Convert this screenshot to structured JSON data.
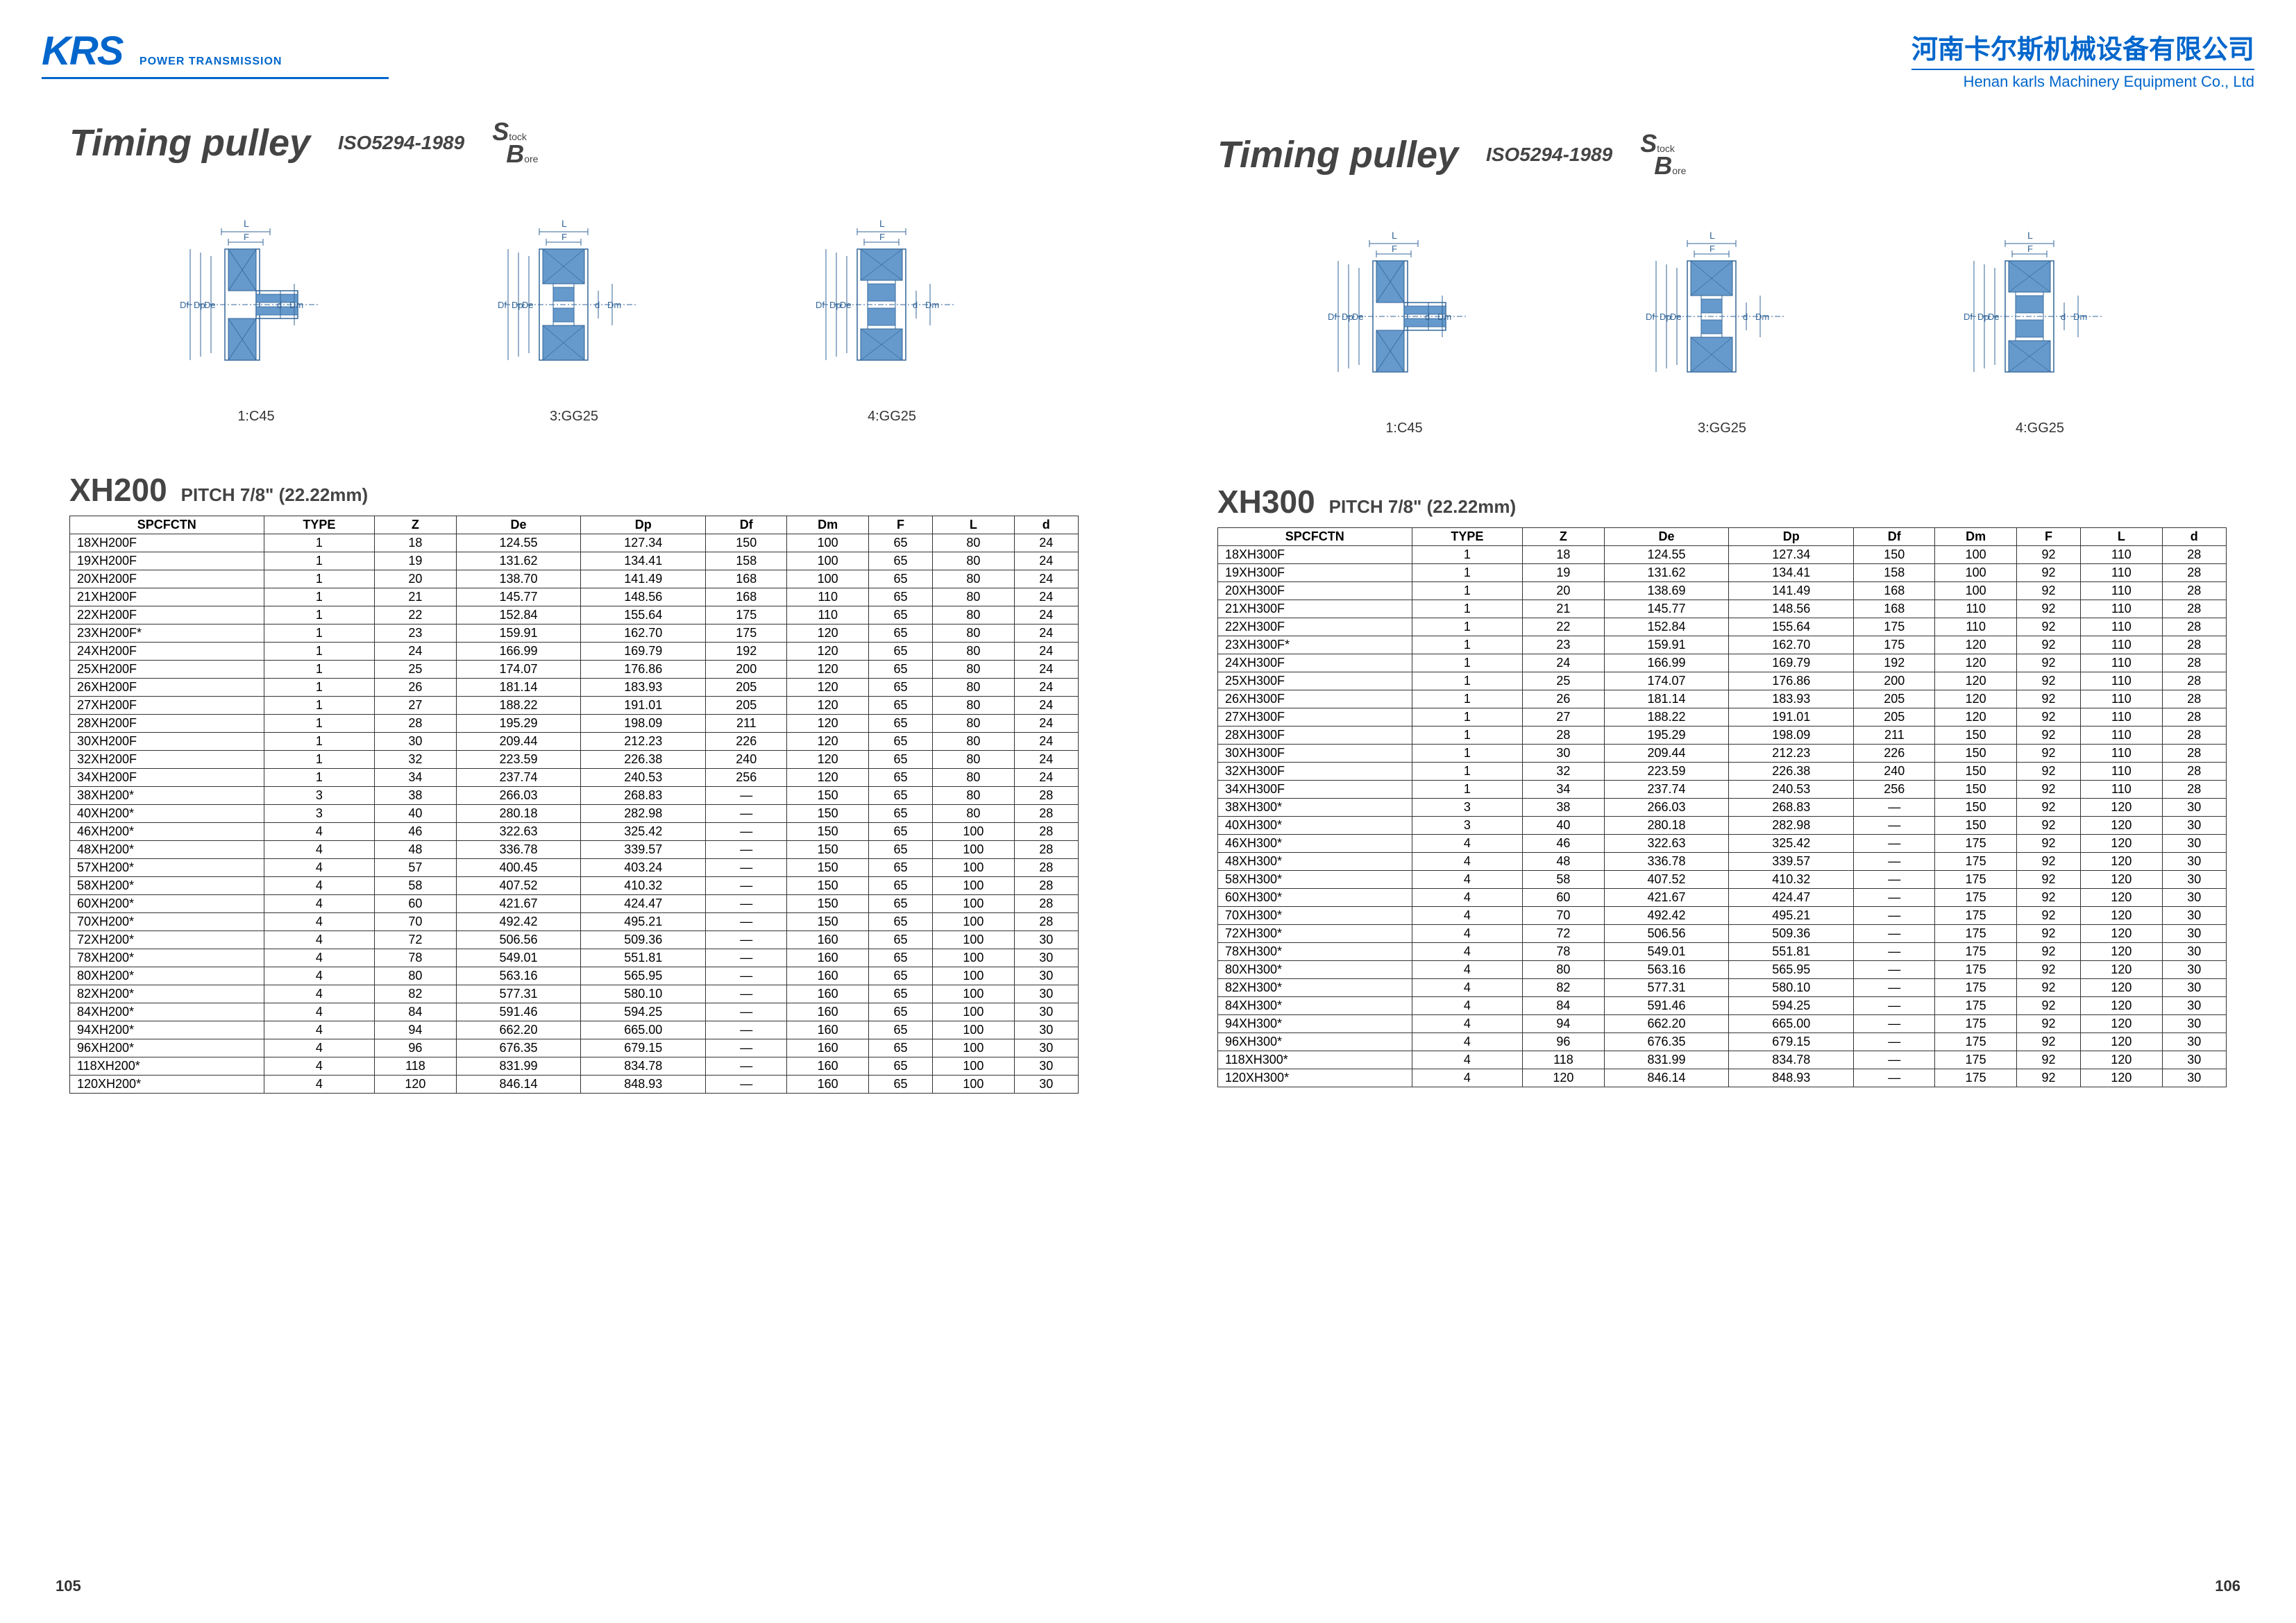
{
  "header": {
    "logo": "KRS",
    "logo_sub": "POWER TRANSMISSION",
    "company_cn": "河南卡尔斯机械设备有限公司",
    "company_en": "Henan karls Machinery Equipment Co., Ltd"
  },
  "title": {
    "main": "Timing pulley",
    "iso": "ISO5294-1989",
    "sb_s": "S",
    "sb_stock": "tock",
    "sb_b": "B",
    "sb_ore": "ore"
  },
  "diagrams": {
    "labels": [
      "1:C45",
      "3:GG25",
      "4:GG25"
    ],
    "dim_labels": [
      "Df",
      "Dp",
      "De",
      "d",
      "Dm",
      "L",
      "F"
    ]
  },
  "left_page": {
    "model": "XH200",
    "pitch": "PITCH 7/8\" (22.22mm)",
    "page_num": "105",
    "columns": [
      "SPCFCTN",
      "TYPE",
      "Z",
      "De",
      "Dp",
      "Df",
      "Dm",
      "F",
      "L",
      "d"
    ],
    "rows": [
      [
        "18XH200F",
        "1",
        "18",
        "124.55",
        "127.34",
        "150",
        "100",
        "65",
        "80",
        "24"
      ],
      [
        "19XH200F",
        "1",
        "19",
        "131.62",
        "134.41",
        "158",
        "100",
        "65",
        "80",
        "24"
      ],
      [
        "20XH200F",
        "1",
        "20",
        "138.70",
        "141.49",
        "168",
        "100",
        "65",
        "80",
        "24"
      ],
      [
        "21XH200F",
        "1",
        "21",
        "145.77",
        "148.56",
        "168",
        "110",
        "65",
        "80",
        "24"
      ],
      [
        "22XH200F",
        "1",
        "22",
        "152.84",
        "155.64",
        "175",
        "110",
        "65",
        "80",
        "24"
      ],
      [
        "23XH200F*",
        "1",
        "23",
        "159.91",
        "162.70",
        "175",
        "120",
        "65",
        "80",
        "24"
      ],
      [
        "24XH200F",
        "1",
        "24",
        "166.99",
        "169.79",
        "192",
        "120",
        "65",
        "80",
        "24"
      ],
      [
        "25XH200F",
        "1",
        "25",
        "174.07",
        "176.86",
        "200",
        "120",
        "65",
        "80",
        "24"
      ],
      [
        "26XH200F",
        "1",
        "26",
        "181.14",
        "183.93",
        "205",
        "120",
        "65",
        "80",
        "24"
      ],
      [
        "27XH200F",
        "1",
        "27",
        "188.22",
        "191.01",
        "205",
        "120",
        "65",
        "80",
        "24"
      ],
      [
        "28XH200F",
        "1",
        "28",
        "195.29",
        "198.09",
        "211",
        "120",
        "65",
        "80",
        "24"
      ],
      [
        "30XH200F",
        "1",
        "30",
        "209.44",
        "212.23",
        "226",
        "120",
        "65",
        "80",
        "24"
      ],
      [
        "32XH200F",
        "1",
        "32",
        "223.59",
        "226.38",
        "240",
        "120",
        "65",
        "80",
        "24"
      ],
      [
        "34XH200F",
        "1",
        "34",
        "237.74",
        "240.53",
        "256",
        "120",
        "65",
        "80",
        "24"
      ],
      [
        "38XH200*",
        "3",
        "38",
        "266.03",
        "268.83",
        "—",
        "150",
        "65",
        "80",
        "28"
      ],
      [
        "40XH200*",
        "3",
        "40",
        "280.18",
        "282.98",
        "—",
        "150",
        "65",
        "80",
        "28"
      ],
      [
        "46XH200*",
        "4",
        "46",
        "322.63",
        "325.42",
        "—",
        "150",
        "65",
        "100",
        "28"
      ],
      [
        "48XH200*",
        "4",
        "48",
        "336.78",
        "339.57",
        "—",
        "150",
        "65",
        "100",
        "28"
      ],
      [
        "57XH200*",
        "4",
        "57",
        "400.45",
        "403.24",
        "—",
        "150",
        "65",
        "100",
        "28"
      ],
      [
        "58XH200*",
        "4",
        "58",
        "407.52",
        "410.32",
        "—",
        "150",
        "65",
        "100",
        "28"
      ],
      [
        "60XH200*",
        "4",
        "60",
        "421.67",
        "424.47",
        "—",
        "150",
        "65",
        "100",
        "28"
      ],
      [
        "70XH200*",
        "4",
        "70",
        "492.42",
        "495.21",
        "—",
        "150",
        "65",
        "100",
        "28"
      ],
      [
        "72XH200*",
        "4",
        "72",
        "506.56",
        "509.36",
        "—",
        "160",
        "65",
        "100",
        "30"
      ],
      [
        "78XH200*",
        "4",
        "78",
        "549.01",
        "551.81",
        "—",
        "160",
        "65",
        "100",
        "30"
      ],
      [
        "80XH200*",
        "4",
        "80",
        "563.16",
        "565.95",
        "—",
        "160",
        "65",
        "100",
        "30"
      ],
      [
        "82XH200*",
        "4",
        "82",
        "577.31",
        "580.10",
        "—",
        "160",
        "65",
        "100",
        "30"
      ],
      [
        "84XH200*",
        "4",
        "84",
        "591.46",
        "594.25",
        "—",
        "160",
        "65",
        "100",
        "30"
      ],
      [
        "94XH200*",
        "4",
        "94",
        "662.20",
        "665.00",
        "—",
        "160",
        "65",
        "100",
        "30"
      ],
      [
        "96XH200*",
        "4",
        "96",
        "676.35",
        "679.15",
        "—",
        "160",
        "65",
        "100",
        "30"
      ],
      [
        "118XH200*",
        "4",
        "118",
        "831.99",
        "834.78",
        "—",
        "160",
        "65",
        "100",
        "30"
      ],
      [
        "120XH200*",
        "4",
        "120",
        "846.14",
        "848.93",
        "—",
        "160",
        "65",
        "100",
        "30"
      ]
    ]
  },
  "right_page": {
    "model": "XH300",
    "pitch": "PITCH 7/8\" (22.22mm)",
    "page_num": "106",
    "columns": [
      "SPCFCTN",
      "TYPE",
      "Z",
      "De",
      "Dp",
      "Df",
      "Dm",
      "F",
      "L",
      "d"
    ],
    "rows": [
      [
        "18XH300F",
        "1",
        "18",
        "124.55",
        "127.34",
        "150",
        "100",
        "92",
        "110",
        "28"
      ],
      [
        "19XH300F",
        "1",
        "19",
        "131.62",
        "134.41",
        "158",
        "100",
        "92",
        "110",
        "28"
      ],
      [
        "20XH300F",
        "1",
        "20",
        "138.69",
        "141.49",
        "168",
        "100",
        "92",
        "110",
        "28"
      ],
      [
        "21XH300F",
        "1",
        "21",
        "145.77",
        "148.56",
        "168",
        "110",
        "92",
        "110",
        "28"
      ],
      [
        "22XH300F",
        "1",
        "22",
        "152.84",
        "155.64",
        "175",
        "110",
        "92",
        "110",
        "28"
      ],
      [
        "23XH300F*",
        "1",
        "23",
        "159.91",
        "162.70",
        "175",
        "120",
        "92",
        "110",
        "28"
      ],
      [
        "24XH300F",
        "1",
        "24",
        "166.99",
        "169.79",
        "192",
        "120",
        "92",
        "110",
        "28"
      ],
      [
        "25XH300F",
        "1",
        "25",
        "174.07",
        "176.86",
        "200",
        "120",
        "92",
        "110",
        "28"
      ],
      [
        "26XH300F",
        "1",
        "26",
        "181.14",
        "183.93",
        "205",
        "120",
        "92",
        "110",
        "28"
      ],
      [
        "27XH300F",
        "1",
        "27",
        "188.22",
        "191.01",
        "205",
        "120",
        "92",
        "110",
        "28"
      ],
      [
        "28XH300F",
        "1",
        "28",
        "195.29",
        "198.09",
        "211",
        "150",
        "92",
        "110",
        "28"
      ],
      [
        "30XH300F",
        "1",
        "30",
        "209.44",
        "212.23",
        "226",
        "150",
        "92",
        "110",
        "28"
      ],
      [
        "32XH300F",
        "1",
        "32",
        "223.59",
        "226.38",
        "240",
        "150",
        "92",
        "110",
        "28"
      ],
      [
        "34XH300F",
        "1",
        "34",
        "237.74",
        "240.53",
        "256",
        "150",
        "92",
        "110",
        "28"
      ],
      [
        "38XH300*",
        "3",
        "38",
        "266.03",
        "268.83",
        "—",
        "150",
        "92",
        "120",
        "30"
      ],
      [
        "40XH300*",
        "3",
        "40",
        "280.18",
        "282.98",
        "—",
        "150",
        "92",
        "120",
        "30"
      ],
      [
        "46XH300*",
        "4",
        "46",
        "322.63",
        "325.42",
        "—",
        "175",
        "92",
        "120",
        "30"
      ],
      [
        "48XH300*",
        "4",
        "48",
        "336.78",
        "339.57",
        "—",
        "175",
        "92",
        "120",
        "30"
      ],
      [
        "58XH300*",
        "4",
        "58",
        "407.52",
        "410.32",
        "—",
        "175",
        "92",
        "120",
        "30"
      ],
      [
        "60XH300*",
        "4",
        "60",
        "421.67",
        "424.47",
        "—",
        "175",
        "92",
        "120",
        "30"
      ],
      [
        "70XH300*",
        "4",
        "70",
        "492.42",
        "495.21",
        "—",
        "175",
        "92",
        "120",
        "30"
      ],
      [
        "72XH300*",
        "4",
        "72",
        "506.56",
        "509.36",
        "—",
        "175",
        "92",
        "120",
        "30"
      ],
      [
        "78XH300*",
        "4",
        "78",
        "549.01",
        "551.81",
        "—",
        "175",
        "92",
        "120",
        "30"
      ],
      [
        "80XH300*",
        "4",
        "80",
        "563.16",
        "565.95",
        "—",
        "175",
        "92",
        "120",
        "30"
      ],
      [
        "82XH300*",
        "4",
        "82",
        "577.31",
        "580.10",
        "—",
        "175",
        "92",
        "120",
        "30"
      ],
      [
        "84XH300*",
        "4",
        "84",
        "591.46",
        "594.25",
        "—",
        "175",
        "92",
        "120",
        "30"
      ],
      [
        "94XH300*",
        "4",
        "94",
        "662.20",
        "665.00",
        "—",
        "175",
        "92",
        "120",
        "30"
      ],
      [
        "96XH300*",
        "4",
        "96",
        "676.35",
        "679.15",
        "—",
        "175",
        "92",
        "120",
        "30"
      ],
      [
        "118XH300*",
        "4",
        "118",
        "831.99",
        "834.78",
        "—",
        "175",
        "92",
        "120",
        "30"
      ],
      [
        "120XH300*",
        "4",
        "120",
        "846.14",
        "848.93",
        "—",
        "175",
        "92",
        "120",
        "30"
      ]
    ]
  },
  "colors": {
    "brand_blue": "#0066cc",
    "text_dark": "#444444",
    "diagram_fill": "#6699cc",
    "diagram_line": "#336699",
    "border": "#333333"
  }
}
